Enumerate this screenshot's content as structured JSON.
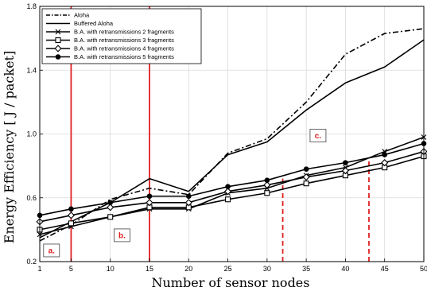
{
  "chart_data": {
    "type": "line",
    "title": "",
    "xlabel": "Number of sensor nodes",
    "ylabel": "Energy Efficiency [ J / packet]",
    "xlim": [
      1,
      50
    ],
    "ylim": [
      0.2,
      1.8
    ],
    "x_ticks": [
      1,
      5,
      10,
      15,
      20,
      25,
      30,
      35,
      40,
      45,
      50
    ],
    "y_ticks": [
      0.2,
      0.6,
      1.0,
      1.4,
      1.8
    ],
    "y_tick_labels": [
      "0.2",
      "0.6",
      "1.0",
      "1.4",
      "1.8"
    ],
    "grid": true,
    "legend_position": "top-left",
    "x": [
      1,
      5,
      10,
      15,
      20,
      25,
      30,
      35,
      40,
      45,
      50
    ],
    "series": [
      {
        "name": "Aloha",
        "style": "dashdot",
        "marker": "none",
        "values": [
          0.33,
          0.43,
          0.59,
          0.66,
          0.62,
          0.88,
          0.97,
          1.2,
          1.5,
          1.63,
          1.66
        ]
      },
      {
        "name": "Buffered Aloha",
        "style": "solid",
        "marker": "none",
        "values": [
          0.35,
          0.45,
          0.57,
          0.72,
          0.64,
          0.87,
          0.95,
          1.15,
          1.32,
          1.42,
          1.59
        ]
      },
      {
        "name": "B.A. with retransmissions 2 fragments",
        "style": "solid",
        "marker": "x",
        "values": [
          0.37,
          0.42,
          0.48,
          0.53,
          0.53,
          0.63,
          0.66,
          0.74,
          0.79,
          0.89,
          0.98
        ]
      },
      {
        "name": "B.A. with retransmissions 3 fragments",
        "style": "solid",
        "marker": "square",
        "values": [
          0.4,
          0.44,
          0.48,
          0.54,
          0.54,
          0.59,
          0.63,
          0.69,
          0.74,
          0.79,
          0.86
        ]
      },
      {
        "name": "B.A. with retransmissions 4 fragments",
        "style": "solid",
        "marker": "diamond",
        "values": [
          0.45,
          0.49,
          0.54,
          0.57,
          0.57,
          0.64,
          0.68,
          0.73,
          0.77,
          0.82,
          0.89
        ]
      },
      {
        "name": "B.A. with retransmissions 5 fragments",
        "style": "solid",
        "marker": "circle",
        "values": [
          0.49,
          0.53,
          0.57,
          0.61,
          0.61,
          0.67,
          0.71,
          0.78,
          0.82,
          0.87,
          0.94
        ]
      }
    ],
    "annotations": [
      {
        "label": "a.",
        "x": 2.5,
        "y": 0.27
      },
      {
        "label": "b.",
        "x": 11.5,
        "y": 0.365
      },
      {
        "label": "c.",
        "x": 36.5,
        "y": 0.99
      }
    ],
    "reference_lines": [
      {
        "x": 5,
        "y_from": 0.2,
        "y_to": 1.8,
        "style": "solid",
        "color": "#e02020"
      },
      {
        "x": 15,
        "y_from": 0.2,
        "y_to": 1.8,
        "style": "solid",
        "color": "#e02020"
      },
      {
        "x": 32,
        "y_from": 0.2,
        "y_to": 0.72,
        "style": "dashed",
        "color": "#e02020"
      },
      {
        "x": 43,
        "y_from": 0.2,
        "y_to": 0.84,
        "style": "dashed",
        "color": "#e02020"
      }
    ],
    "colors": {
      "series": "#000000",
      "annotation": "#e02020"
    }
  }
}
